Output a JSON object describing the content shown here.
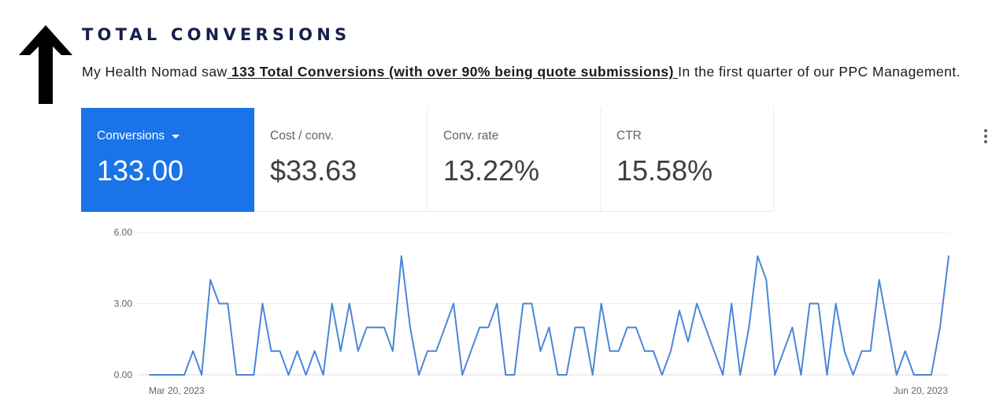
{
  "icons": {
    "arrow": "up-arrow-icon",
    "more": "more-vert-icon",
    "dropdown": "caret-down-icon"
  },
  "colors": {
    "heading": "#15204a",
    "accent": "#1a73e8",
    "line": "#4a86d8"
  },
  "heading": "TOTAL CONVERSIONS",
  "intro": {
    "prefix": "My Health Nomad saw",
    "highlight": " 133 Total Conversions (with over 90% being quote submissions) ",
    "suffix": "In the first quarter of our PPC Management."
  },
  "scorecards": [
    {
      "label": "Conversions",
      "value": "133.00",
      "active": true
    },
    {
      "label": "Cost / conv.",
      "value": "$33.63",
      "active": false
    },
    {
      "label": "Conv. rate",
      "value": "13.22%",
      "active": false
    },
    {
      "label": "CTR",
      "value": "15.58%",
      "active": false
    }
  ],
  "chart_data": {
    "type": "line",
    "title": "",
    "xlabel": "",
    "ylabel": "",
    "ylim": [
      0,
      6
    ],
    "yticks": [
      "6.00",
      "3.00",
      "0.00"
    ],
    "xticks": [
      "Mar 20, 2023",
      "Jun 20, 2023"
    ],
    "grid": true,
    "series": [
      {
        "values": [
          0,
          0,
          0,
          0,
          0,
          1,
          0,
          4,
          3,
          3,
          0,
          0,
          0,
          3,
          1,
          1,
          0,
          1,
          0,
          1,
          0,
          3,
          1,
          3,
          1,
          2,
          2,
          2,
          1,
          5,
          2,
          0,
          1,
          1,
          2,
          3,
          0,
          1,
          2,
          2,
          3,
          0,
          0,
          3,
          3,
          1,
          2,
          0,
          0,
          2,
          2,
          0,
          3,
          1,
          1,
          2,
          2,
          1,
          1,
          0,
          1,
          2.7,
          1.4,
          3,
          2,
          1,
          0,
          3,
          0,
          2,
          5,
          4,
          0,
          1,
          2,
          0,
          3,
          3,
          0,
          3,
          1,
          0,
          1,
          1,
          4,
          2,
          0,
          1,
          0,
          0,
          0,
          2,
          5
        ]
      }
    ]
  }
}
